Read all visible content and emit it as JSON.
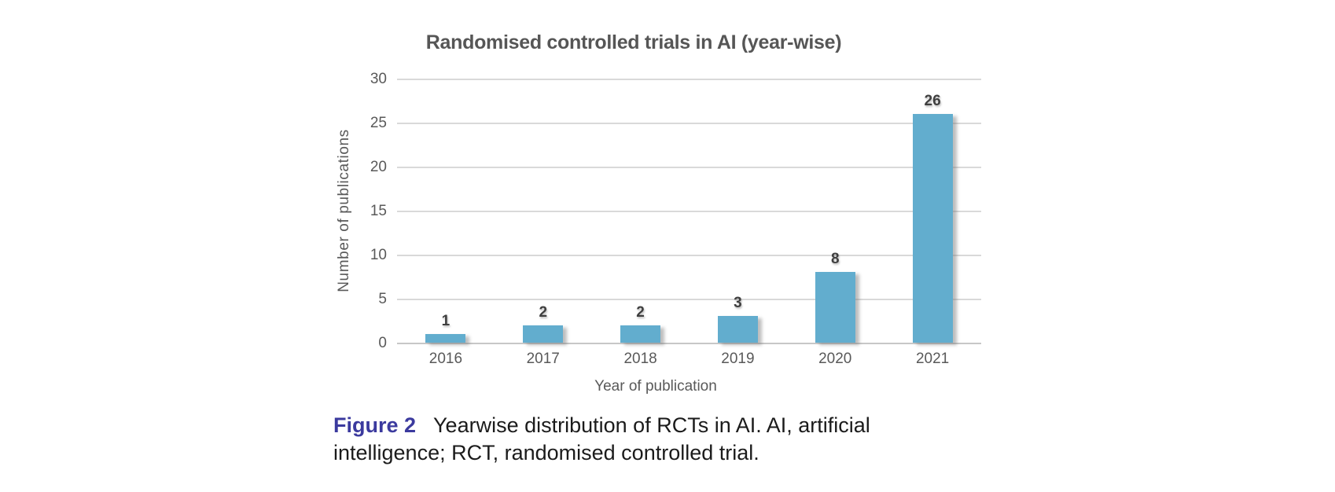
{
  "chart_data": {
    "type": "bar",
    "title": "Randomised controlled trials in AI (year-wise)",
    "categories": [
      "2016",
      "2017",
      "2018",
      "2019",
      "2020",
      "2021"
    ],
    "values": [
      1,
      2,
      2,
      3,
      8,
      26
    ],
    "data_labels": [
      "1",
      "2",
      "2",
      "3",
      "8",
      "26"
    ],
    "xlabel": "Year of publication",
    "ylabel": "Number of publications",
    "ylim": [
      0,
      30
    ],
    "yticks": [
      0,
      5,
      10,
      15,
      20,
      25,
      30
    ],
    "grid": "horizontal-only",
    "legend_position": "none",
    "bar_color": "#62adce"
  },
  "figure": {
    "caption_label": "Figure 2",
    "caption_line1": "Yearwise distribution of RCTs in AI. AI, artificial",
    "caption_line2": "intelligence; RCT, randomised controlled trial."
  },
  "colors": {
    "bar": "#62adce",
    "gridline": "#d9d9d9",
    "axis_line": "#c7c7c7",
    "axis_text": "#595959",
    "title_text": "#565656",
    "value_label_text": "#3f3f3f",
    "caption_label": "#3b3a9e",
    "caption_text": "#1b1b1b"
  }
}
